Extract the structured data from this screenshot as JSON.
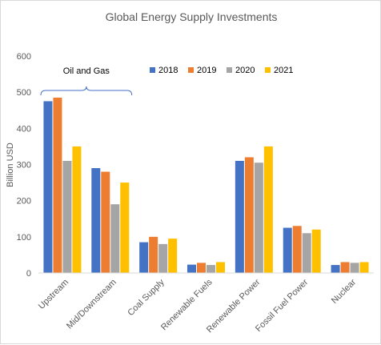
{
  "chart_data": {
    "type": "bar",
    "title": "Global Energy Supply Investments",
    "xlabel": "",
    "ylabel": "Billion USD",
    "ylim": [
      0,
      600
    ],
    "yticks": [
      0,
      100,
      200,
      300,
      400,
      500,
      600
    ],
    "grid": false,
    "legend_position": "top-right",
    "categories": [
      "Upstream",
      "Mid/Downstream",
      "Coal Supply",
      "Renewable Fuels",
      "Renewable Power",
      "Fossil Fuel Power",
      "Nuclear"
    ],
    "series": [
      {
        "name": "2018",
        "color": "#4472c4",
        "values": [
          475,
          290,
          85,
          23,
          310,
          125,
          22
        ]
      },
      {
        "name": "2019",
        "color": "#ed7d31",
        "values": [
          485,
          280,
          100,
          28,
          320,
          130,
          30
        ]
      },
      {
        "name": "2020",
        "color": "#a5a5a5",
        "values": [
          310,
          190,
          80,
          22,
          305,
          110,
          28
        ]
      },
      {
        "name": "2021",
        "color": "#ffc000",
        "values": [
          350,
          250,
          95,
          30,
          350,
          120,
          30
        ]
      }
    ],
    "annotations": [
      {
        "text": "Oil and Gas",
        "spans": [
          "Upstream",
          "Mid/Downstream"
        ],
        "bracket_color": "#4472c4"
      }
    ]
  }
}
